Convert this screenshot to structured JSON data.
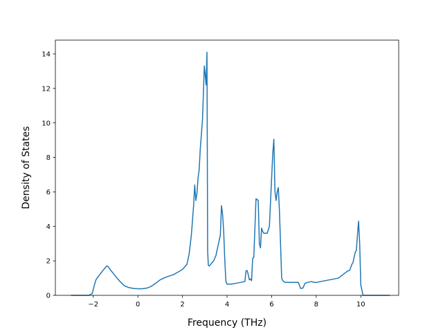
{
  "chart_data": {
    "type": "line",
    "title": "",
    "xlabel": "Frequency (THz)",
    "ylabel": "Density of States",
    "xlim": [
      -3.7,
      11.7
    ],
    "ylim": [
      0,
      14.8
    ],
    "xticks": [
      -2,
      0,
      2,
      4,
      6,
      8,
      10
    ],
    "yticks": [
      0,
      2,
      4,
      6,
      8,
      10,
      12,
      14
    ],
    "xtick_labels": [
      "−2",
      "0",
      "2",
      "4",
      "6",
      "8",
      "10"
    ],
    "ytick_labels": [
      "0",
      "2",
      "4",
      "6",
      "8",
      "10",
      "12",
      "14"
    ],
    "grid": false,
    "legend": "none",
    "series": [
      {
        "color": "#1f77b4",
        "x": [
          -3.0,
          -2.2,
          -2.05,
          -1.95,
          -1.88,
          -1.8,
          -1.65,
          -1.5,
          -1.4,
          -1.32,
          -1.25,
          -1.15,
          -1.0,
          -0.8,
          -0.6,
          -0.4,
          -0.2,
          0.0,
          0.2,
          0.4,
          0.6,
          0.8,
          1.0,
          1.2,
          1.4,
          1.6,
          1.8,
          2.0,
          2.1,
          2.2,
          2.3,
          2.4,
          2.5,
          2.55,
          2.6,
          2.65,
          2.7,
          2.75,
          2.8,
          2.9,
          2.98,
          3.02,
          3.06,
          3.1,
          3.13,
          3.16,
          3.2,
          3.3,
          3.4,
          3.5,
          3.6,
          3.65,
          3.7,
          3.75,
          3.8,
          3.85,
          3.9,
          3.95,
          4.0,
          4.2,
          4.4,
          4.6,
          4.8,
          4.85,
          4.9,
          4.95,
          5.0,
          5.05,
          5.1,
          5.15,
          5.2,
          5.3,
          5.4,
          5.45,
          5.5,
          5.55,
          5.6,
          5.65,
          5.7,
          5.75,
          5.8,
          5.9,
          6.0,
          6.05,
          6.1,
          6.15,
          6.2,
          6.25,
          6.3,
          6.35,
          6.4,
          6.45,
          6.5,
          6.55,
          6.6,
          6.65,
          6.7,
          6.8,
          7.0,
          7.2,
          7.3,
          7.4,
          7.5,
          7.6,
          7.8,
          7.9,
          8.0,
          8.2,
          8.4,
          8.6,
          8.8,
          9.0,
          9.2,
          9.3,
          9.4,
          9.5,
          9.6,
          9.65,
          9.7,
          9.75,
          9.8,
          9.85,
          9.9,
          9.95,
          10.0,
          10.1,
          10.3,
          11.3
        ],
        "y": [
          0.0,
          0.0,
          0.1,
          0.6,
          0.9,
          1.05,
          1.3,
          1.55,
          1.7,
          1.65,
          1.5,
          1.35,
          1.1,
          0.8,
          0.55,
          0.45,
          0.4,
          0.38,
          0.38,
          0.42,
          0.52,
          0.7,
          0.9,
          1.02,
          1.12,
          1.2,
          1.35,
          1.5,
          1.65,
          1.8,
          2.4,
          3.5,
          5.2,
          6.4,
          5.5,
          5.9,
          6.8,
          7.3,
          8.5,
          10.2,
          13.3,
          12.8,
          12.2,
          14.1,
          2.6,
          1.75,
          1.7,
          1.85,
          2.0,
          2.3,
          2.9,
          3.2,
          3.5,
          5.2,
          4.7,
          3.7,
          2.0,
          0.8,
          0.65,
          0.65,
          0.7,
          0.75,
          0.8,
          1.42,
          1.44,
          1.2,
          0.9,
          0.95,
          0.85,
          2.15,
          2.2,
          5.6,
          5.5,
          3.0,
          2.75,
          3.9,
          3.7,
          3.6,
          3.6,
          3.6,
          3.6,
          4.0,
          6.8,
          8.2,
          9.05,
          6.0,
          5.5,
          6.0,
          6.25,
          4.9,
          3.0,
          1.0,
          0.85,
          0.8,
          0.75,
          0.75,
          0.75,
          0.75,
          0.75,
          0.75,
          0.4,
          0.42,
          0.7,
          0.75,
          0.8,
          0.75,
          0.75,
          0.8,
          0.85,
          0.9,
          0.95,
          1.0,
          1.2,
          1.3,
          1.4,
          1.45,
          1.8,
          1.9,
          2.2,
          2.5,
          2.6,
          3.5,
          4.3,
          3.0,
          0.6,
          0.0,
          0.0,
          0.0
        ]
      }
    ]
  }
}
